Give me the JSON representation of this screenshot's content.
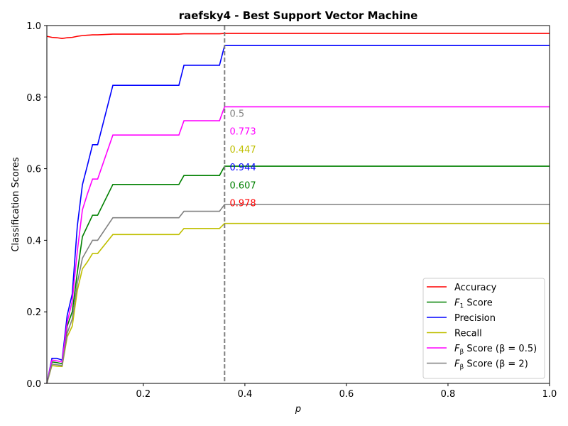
{
  "chart_data": {
    "type": "line",
    "title": "raefsky4 - Best Support Vector Machine",
    "xlabel": "p",
    "ylabel": "Classification Scores",
    "xlim": [
      0.01,
      1.0
    ],
    "ylim": [
      0.0,
      1.0
    ],
    "x_ticks": [
      "0.2",
      "0.4",
      "0.6",
      "0.8",
      "1.0"
    ],
    "x_tick_values": [
      0.2,
      0.4,
      0.6,
      0.8,
      1.0
    ],
    "y_ticks": [
      "0.0",
      "0.2",
      "0.4",
      "0.6",
      "0.8",
      "1.0"
    ],
    "y_tick_values": [
      0.0,
      0.2,
      0.4,
      0.6,
      0.8,
      1.0
    ],
    "grid": false,
    "legend_position": "lower-right",
    "vline": {
      "x": 0.36,
      "color": "#7f7f7f",
      "style": "dashed"
    },
    "x": [
      0.01,
      0.02,
      0.03,
      0.04,
      0.05,
      0.06,
      0.07,
      0.08,
      0.09,
      0.1,
      0.11,
      0.14,
      0.27,
      0.28,
      0.35,
      0.36,
      1.0
    ],
    "series": [
      {
        "name": "Accuracy",
        "label_main": "Accuracy",
        "label_sub": "",
        "label_suffix": "",
        "color": "#ff0000",
        "values": [
          0.97,
          0.967,
          0.966,
          0.964,
          0.966,
          0.967,
          0.97,
          0.972,
          0.973,
          0.974,
          0.974,
          0.976,
          0.976,
          0.977,
          0.977,
          0.978,
          0.978
        ]
      },
      {
        "name": "F1 Score",
        "label_main": "F",
        "label_sub": "1",
        "label_suffix": " Score",
        "color": "#008000",
        "values": [
          0.0,
          0.06,
          0.058,
          0.055,
          0.16,
          0.2,
          0.31,
          0.41,
          0.44,
          0.47,
          0.47,
          0.556,
          0.556,
          0.581,
          0.581,
          0.607,
          0.607
        ]
      },
      {
        "name": "Precision",
        "label_main": "Precision",
        "label_sub": "",
        "label_suffix": "",
        "color": "#0000ff",
        "values": [
          0.0,
          0.07,
          0.07,
          0.065,
          0.19,
          0.25,
          0.44,
          0.555,
          0.61,
          0.667,
          0.667,
          0.833,
          0.833,
          0.889,
          0.889,
          0.944,
          0.944
        ]
      },
      {
        "name": "Recall",
        "label_main": "Recall",
        "label_sub": "",
        "label_suffix": "",
        "color": "#bfbf00",
        "values": [
          0.0,
          0.05,
          0.048,
          0.047,
          0.13,
          0.16,
          0.26,
          0.32,
          0.34,
          0.363,
          0.363,
          0.416,
          0.416,
          0.433,
          0.433,
          0.447,
          0.447
        ]
      },
      {
        "name": "F_beta Score (beta=0.5)",
        "label_main": "F",
        "label_sub": "β",
        "label_suffix": " Score (β = 0.5)",
        "color": "#ff00ff",
        "values": [
          0.0,
          0.065,
          0.063,
          0.06,
          0.17,
          0.23,
          0.37,
          0.485,
          0.53,
          0.571,
          0.571,
          0.694,
          0.694,
          0.734,
          0.734,
          0.773,
          0.773
        ]
      },
      {
        "name": "F_beta Score (beta=2)",
        "label_main": "F",
        "label_sub": "β",
        "label_suffix": " Score (β = 2)",
        "color": "#808080",
        "values": [
          0.0,
          0.054,
          0.052,
          0.05,
          0.14,
          0.18,
          0.28,
          0.35,
          0.375,
          0.4,
          0.4,
          0.463,
          0.463,
          0.481,
          0.481,
          0.5,
          0.5
        ]
      }
    ],
    "annotations": [
      {
        "text": "0.5",
        "color": "#808080",
        "x": 0.37,
        "y": 0.755
      },
      {
        "text": "0.773",
        "color": "#ff00ff",
        "x": 0.37,
        "y": 0.705
      },
      {
        "text": "0.447",
        "color": "#bfbf00",
        "x": 0.37,
        "y": 0.655
      },
      {
        "text": "0.944",
        "color": "#0000ff",
        "x": 0.37,
        "y": 0.605
      },
      {
        "text": "0.607",
        "color": "#008000",
        "x": 0.37,
        "y": 0.555
      },
      {
        "text": "0.978",
        "color": "#ff0000",
        "x": 0.37,
        "y": 0.505
      }
    ]
  }
}
